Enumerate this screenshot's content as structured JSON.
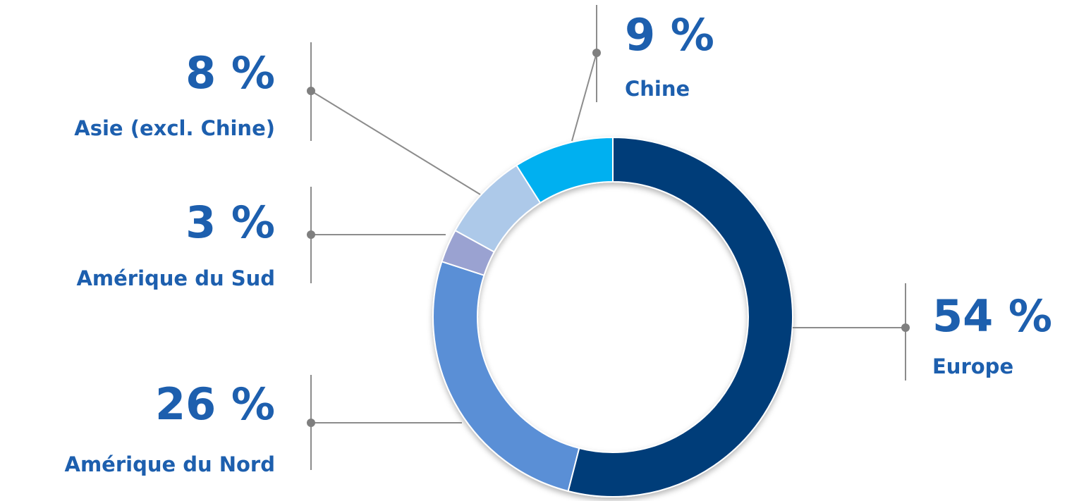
{
  "chart_data": {
    "type": "pie",
    "style": "donut",
    "slices": [
      {
        "label": "Europe",
        "value": 54,
        "value_label": "54 %",
        "color": "#003d79"
      },
      {
        "label": "Amérique du Nord",
        "value": 26,
        "value_label": "26 %",
        "color": "#5a8fd6"
      },
      {
        "label": "Amérique du Sud",
        "value": 3,
        "value_label": "3 %",
        "color": "#9aa2d1"
      },
      {
        "label": "Asie (excl. Chine)",
        "value": 8,
        "value_label": "8 %",
        "color": "#adc9e9"
      },
      {
        "label": "Chine",
        "value": 9,
        "value_label": "9 %",
        "color": "#00b0f0"
      }
    ],
    "label_color": "#1d5fae",
    "leader_color": "#8c8c8c"
  }
}
